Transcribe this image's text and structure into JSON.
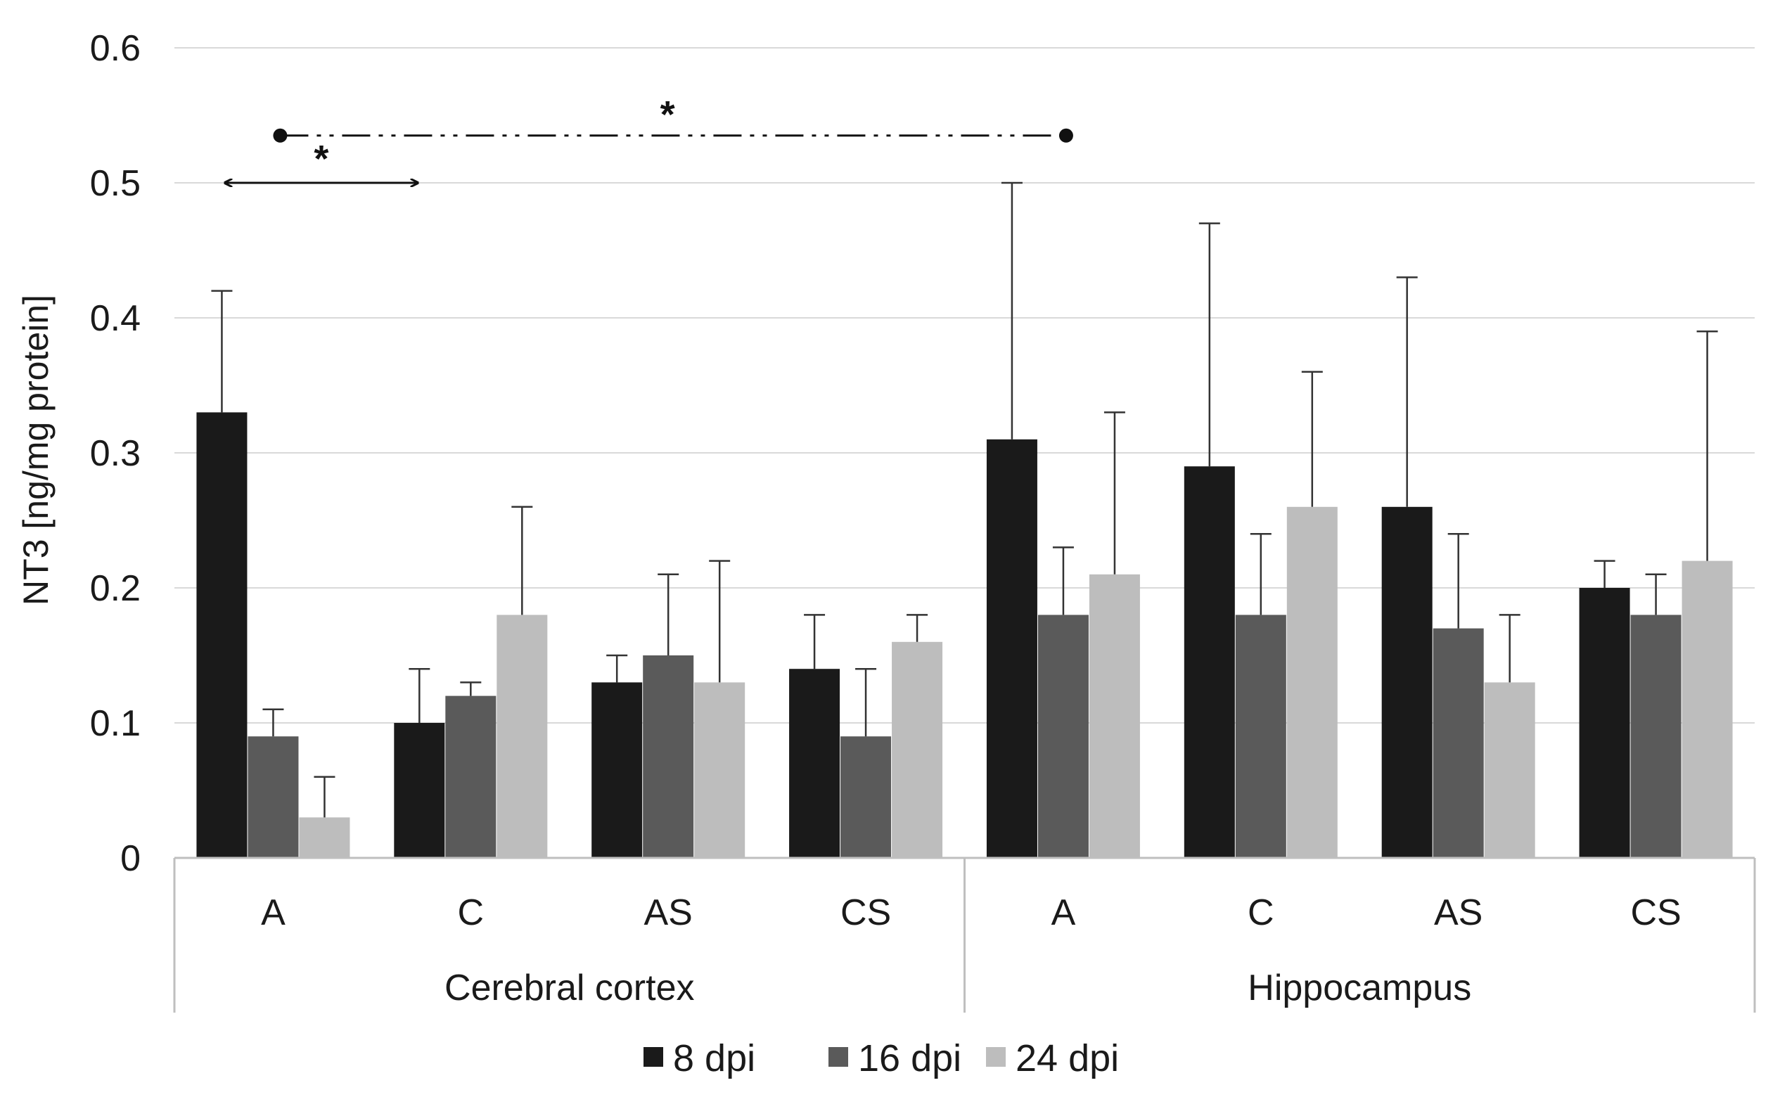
{
  "chart_data": {
    "type": "bar",
    "ylabel": "NT3 [ng/mg protein]",
    "ylim": [
      0,
      0.6
    ],
    "yticks": [
      0,
      0.1,
      0.2,
      0.3,
      0.4,
      0.5,
      0.6
    ],
    "ytick_labels": [
      "0",
      "0.1",
      "0.2",
      "0.3",
      "0.4",
      "0.5",
      "0.6"
    ],
    "grid": true,
    "legend_position": "bottom",
    "groups": [
      {
        "name": "Cerebral cortex",
        "categories": [
          "A",
          "C",
          "AS",
          "CS"
        ]
      },
      {
        "name": "Hippocampus",
        "categories": [
          "A",
          "C",
          "AS",
          "CS"
        ]
      }
    ],
    "categories": [
      "A",
      "C",
      "AS",
      "CS",
      "A",
      "C",
      "AS",
      "CS"
    ],
    "series": [
      {
        "name": "8 dpi",
        "color": "#1a1a1a",
        "values": [
          0.33,
          0.1,
          0.13,
          0.14,
          0.31,
          0.29,
          0.26,
          0.2
        ],
        "errors": [
          0.09,
          0.04,
          0.02,
          0.04,
          0.19,
          0.18,
          0.17,
          0.02
        ]
      },
      {
        "name": "16 dpi",
        "color": "#5a5a5a",
        "values": [
          0.09,
          0.12,
          0.15,
          0.09,
          0.18,
          0.18,
          0.17,
          0.18
        ],
        "errors": [
          0.02,
          0.01,
          0.06,
          0.05,
          0.05,
          0.06,
          0.07,
          0.03
        ]
      },
      {
        "name": "24 dpi",
        "color": "#bdbdbd",
        "values": [
          0.03,
          0.18,
          0.13,
          0.16,
          0.21,
          0.26,
          0.13,
          0.22
        ],
        "errors": [
          0.03,
          0.08,
          0.09,
          0.02,
          0.12,
          0.1,
          0.05,
          0.17
        ]
      }
    ],
    "annotations": [
      {
        "type": "double-arrow",
        "label": "*",
        "from_category": 0,
        "to_category": 1,
        "y": 0.5
      },
      {
        "type": "dash-dot-dot-bracket",
        "label": "*",
        "from_category": 0,
        "to_category": 4,
        "y": 0.535
      }
    ]
  }
}
